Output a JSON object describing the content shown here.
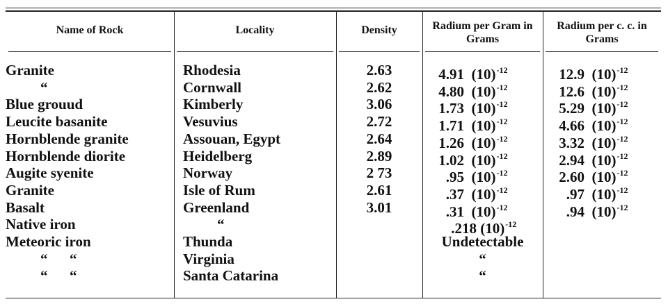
{
  "table": {
    "headers": [
      "Name of Rock",
      "Locality",
      "Density",
      "Radium per Gram in Grams",
      "Radium per c. c. in Grams"
    ],
    "rows": [
      [
        "Granite",
        "Rhodesia",
        "2.63",
        {
          "value": "4.91",
          "unit": "(10)",
          "exponent": "-12"
        },
        {
          "value": "12.9",
          "unit": "(10)",
          "exponent": "-12"
        }
      ],
      [
        "“",
        "Cornwall",
        "2.62",
        {
          "value": "4.80",
          "unit": "(10)",
          "exponent": "-12"
        },
        {
          "value": "12.6",
          "unit": "(10)",
          "exponent": "-12"
        }
      ],
      [
        "Blue grouud",
        "Kimberly",
        "3.06",
        {
          "value": "1.73",
          "unit": "(10)",
          "exponent": "-12"
        },
        {
          "value": "5.29",
          "unit": "(10)",
          "exponent": "-12"
        }
      ],
      [
        "Leucite basanite",
        "Vesuvius",
        "2.72",
        {
          "value": "1.71",
          "unit": "(10)",
          "exponent": "-12"
        },
        {
          "value": "4.66",
          "unit": "(10)",
          "exponent": "-12"
        }
      ],
      [
        "Hornblende granite",
        "Assouan, Egypt",
        "2.64",
        {
          "value": "1.26",
          "unit": "(10)",
          "exponent": "-12"
        },
        {
          "value": "3.32",
          "unit": "(10)",
          "exponent": "-12"
        }
      ],
      [
        "Hornblende diorite",
        "Heidelberg",
        "2.89",
        {
          "value": "1.02",
          "unit": "(10)",
          "exponent": "-12"
        },
        {
          "value": "2.94",
          "unit": "(10)",
          "exponent": "-12"
        }
      ],
      [
        "Augite syenite",
        "Norway",
        "2 73",
        {
          "value": ".95",
          "unit": "(10)",
          "exponent": "-12"
        },
        {
          "value": "2.60",
          "unit": "(10)",
          "exponent": "-12"
        }
      ],
      [
        "Granite",
        "Isle of Rum",
        "2.61",
        {
          "value": ".37",
          "unit": "(10)",
          "exponent": "-12"
        },
        {
          "value": ".97",
          "unit": "(10)",
          "exponent": "-12"
        }
      ],
      [
        "Basalt",
        "Greenland",
        "3.01",
        {
          "value": ".31",
          "unit": "(10)",
          "exponent": "-12"
        },
        {
          "value": ".94",
          "unit": "(10)",
          "exponent": "-12"
        }
      ],
      [
        "Native iron",
        "“",
        null,
        {
          "value": ".218",
          "unit": "(10)",
          "exponent": "-12"
        },
        null
      ],
      [
        "Meteoric iron",
        "Thunda",
        null,
        "Undetectable",
        null
      ],
      [
        "“      “",
        "Virginia",
        null,
        "“",
        null
      ],
      [
        "“      “",
        "Santa Catarina",
        null,
        "“",
        null
      ]
    ]
  }
}
